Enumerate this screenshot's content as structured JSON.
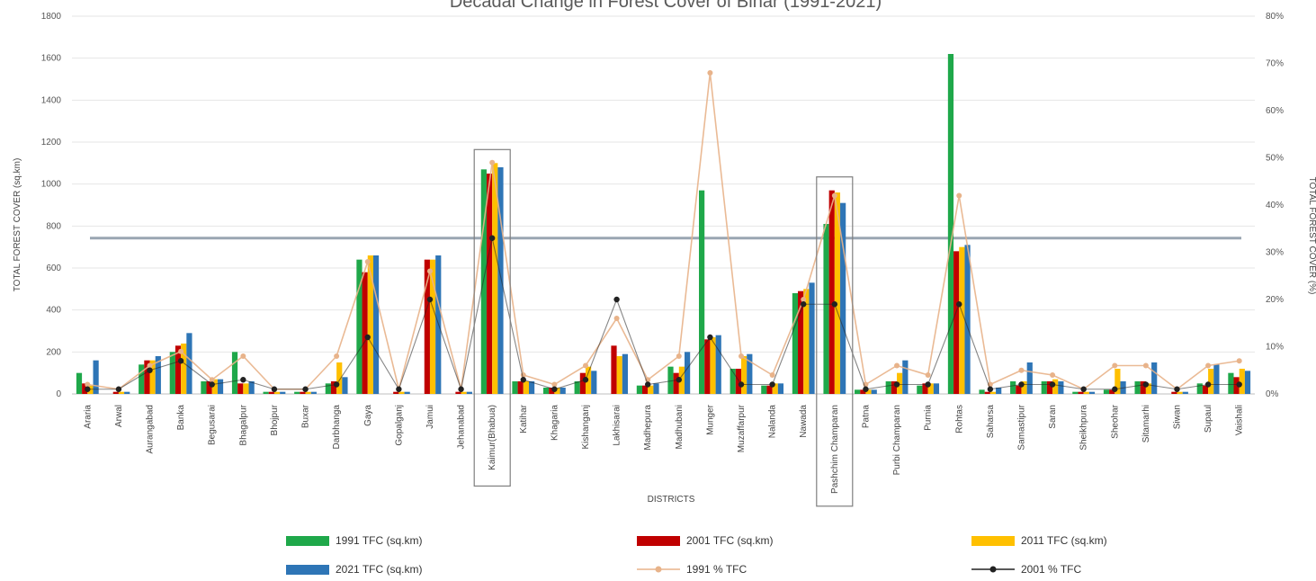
{
  "chart_data": {
    "type": "bar",
    "title": "Decadal Change in Forest Cover of Bihar (1991-2021)",
    "xlabel": "DISTRICTS",
    "ylabel": "TOTAL FOREST COVER (sq.km)",
    "y2label": "TOTAL FOREST COVER (%)",
    "ylim": [
      0,
      1800
    ],
    "y2lim": [
      0,
      80
    ],
    "yticks": [
      "0",
      "200",
      "400",
      "600",
      "800",
      "1000",
      "1200",
      "1400",
      "1600",
      "1800"
    ],
    "y2ticks": [
      "0%",
      "10%",
      "20%",
      "30%",
      "40%",
      "50%",
      "60%",
      "70%",
      "80%"
    ],
    "reference_line_value": 33,
    "highlighted_categories": [
      "Kaimur(Bhabua)",
      "Pashchim Champaran"
    ],
    "categories": [
      "Araria",
      "Arwal",
      "Aurangabad",
      "Banka",
      "Begusarai",
      "Bhagalpur",
      "Bhojpur",
      "Buxar",
      "Darbhanga",
      "Gaya",
      "Gopalganj",
      "Jamui",
      "Jehanabad",
      "Kaimur(Bhabua)",
      "Katihar",
      "Khagaria",
      "Kishanganj",
      "Lakhisarai",
      "Madhepura",
      "Madhubani",
      "Munger",
      "Muzaffarpur",
      "Nalanda",
      "Nawada",
      "Pashchim Champaran",
      "Patna",
      "Purbi Champaran",
      "Purnia",
      "Rohtas",
      "Saharsa",
      "Samastipur",
      "Saran",
      "Sheikhpura",
      "Sheohar",
      "Sitamarhi",
      "Siwan",
      "Supaul",
      "Vaishali"
    ],
    "series": [
      {
        "name": "1991 TFC (sq.km)",
        "kind": "bar",
        "color": "#1fa84a",
        "values": [
          100,
          0,
          140,
          200,
          60,
          200,
          10,
          10,
          50,
          640,
          0,
          0,
          0,
          1070,
          60,
          30,
          60,
          0,
          40,
          130,
          970,
          120,
          40,
          480,
          810,
          20,
          60,
          40,
          1620,
          20,
          60,
          60,
          10,
          20,
          60,
          0,
          50,
          100
        ]
      },
      {
        "name": "2001 TFC (sq.km)",
        "kind": "bar",
        "color": "#c00000",
        "values": [
          50,
          10,
          160,
          230,
          60,
          50,
          10,
          10,
          60,
          580,
          10,
          640,
          10,
          1050,
          60,
          30,
          100,
          230,
          40,
          100,
          260,
          120,
          40,
          490,
          970,
          20,
          60,
          50,
          680,
          10,
          40,
          60,
          10,
          20,
          60,
          10,
          40,
          80
        ]
      },
      {
        "name": "2011 TFC (sq.km)",
        "kind": "bar",
        "color": "#ffc000",
        "values": [
          40,
          10,
          160,
          240,
          70,
          50,
          10,
          10,
          150,
          660,
          10,
          640,
          10,
          1100,
          60,
          30,
          130,
          180,
          40,
          130,
          270,
          180,
          50,
          500,
          960,
          20,
          100,
          50,
          700,
          10,
          60,
          70,
          10,
          120,
          50,
          10,
          120,
          120
        ]
      },
      {
        "name": "2021 TFC (sq.km)",
        "kind": "bar",
        "color": "#2e75b6",
        "values": [
          160,
          10,
          180,
          290,
          70,
          60,
          10,
          10,
          80,
          660,
          10,
          660,
          10,
          1080,
          60,
          30,
          110,
          190,
          50,
          200,
          280,
          190,
          50,
          530,
          910,
          20,
          160,
          50,
          710,
          30,
          150,
          60,
          10,
          60,
          150,
          10,
          140,
          110
        ]
      },
      {
        "name": "1991 % TFC",
        "kind": "line",
        "color": "#e8b38a",
        "values": [
          2,
          1,
          6,
          9,
          3,
          8,
          1,
          1,
          8,
          28,
          1,
          26,
          1,
          49,
          4,
          2,
          6,
          16,
          3,
          8,
          68,
          8,
          4,
          20,
          42,
          2,
          6,
          4,
          42,
          2,
          5,
          4,
          1,
          6,
          6,
          1,
          6,
          7
        ]
      },
      {
        "name": "2001 % TFC",
        "kind": "line",
        "color": "#222222",
        "values": [
          1,
          1,
          5,
          7,
          2,
          3,
          1,
          1,
          2,
          12,
          1,
          20,
          1,
          33,
          3,
          1,
          3,
          20,
          2,
          3,
          12,
          2,
          2,
          19,
          19,
          1,
          2,
          2,
          19,
          1,
          2,
          2,
          1,
          1,
          2,
          1,
          2,
          2
        ]
      }
    ]
  }
}
